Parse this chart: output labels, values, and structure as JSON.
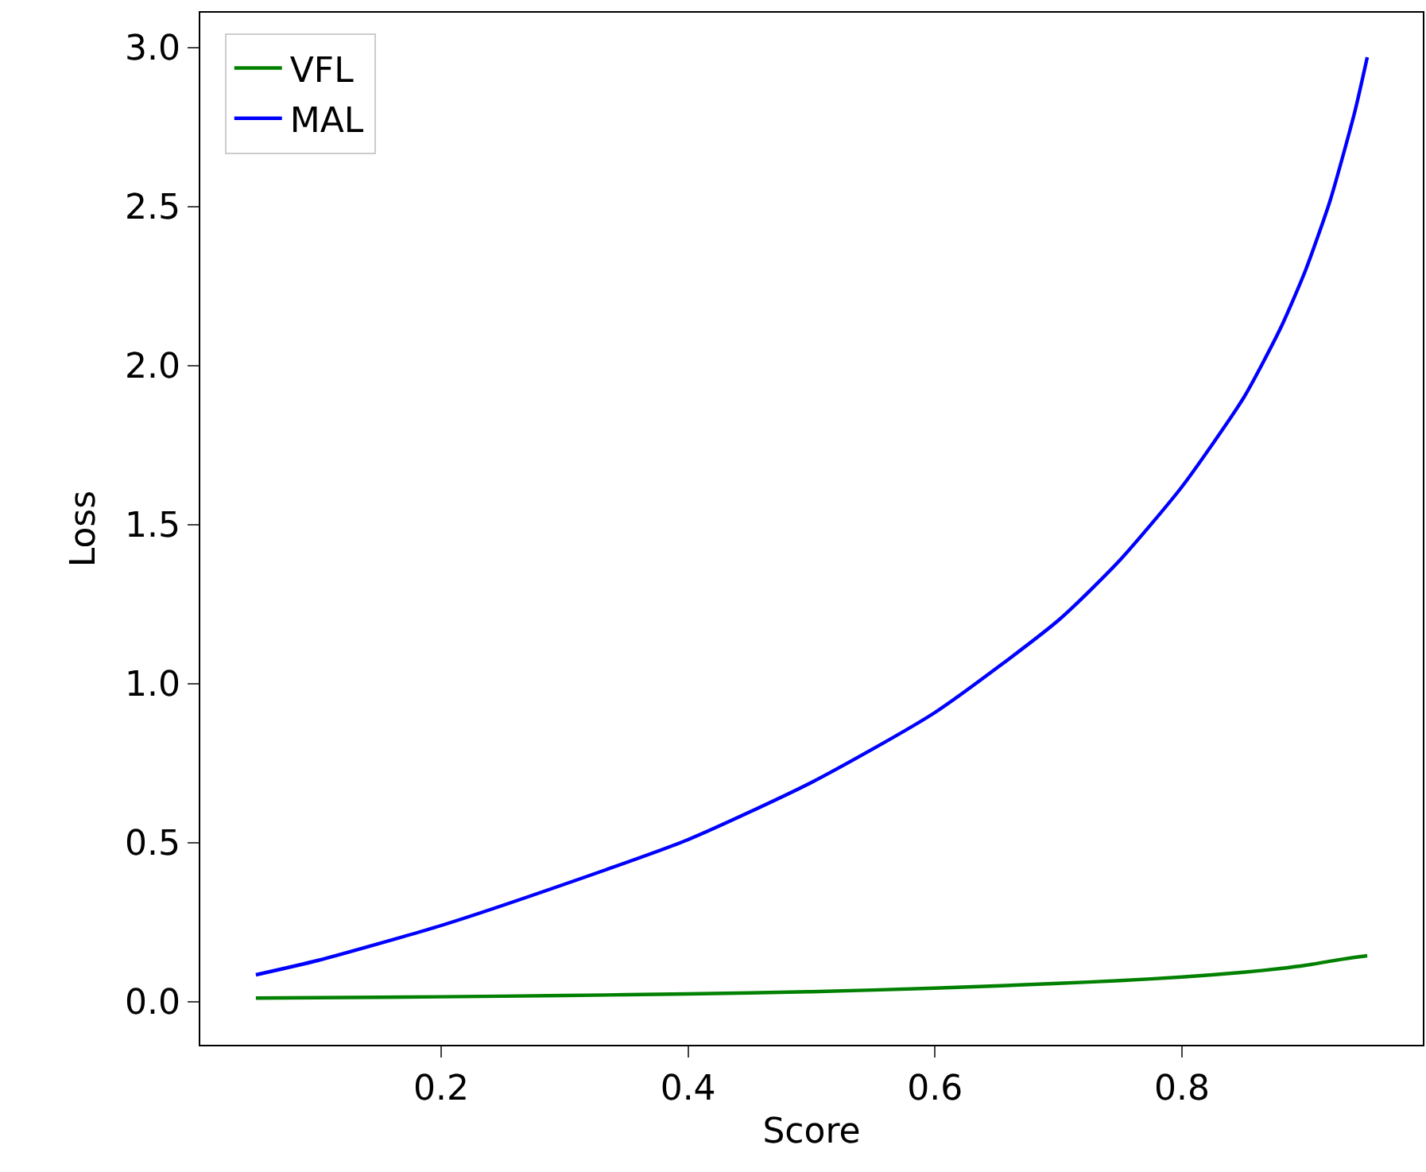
{
  "chart_data": {
    "type": "line",
    "xlabel": "Score",
    "ylabel": "Loss",
    "x": [
      0.05,
      0.1,
      0.2,
      0.3,
      0.4,
      0.5,
      0.6,
      0.7,
      0.75,
      0.8,
      0.85,
      0.88,
      0.9,
      0.92,
      0.94,
      0.95
    ],
    "series": [
      {
        "name": "VFL",
        "color": "#008000",
        "values": [
          0.012,
          0.013,
          0.016,
          0.02,
          0.025,
          0.032,
          0.043,
          0.058,
          0.067,
          0.078,
          0.093,
          0.105,
          0.115,
          0.128,
          0.14,
          0.145
        ]
      },
      {
        "name": "MAL",
        "color": "#0000ff",
        "values": [
          0.085,
          0.13,
          0.24,
          0.37,
          0.51,
          0.69,
          0.91,
          1.2,
          1.39,
          1.62,
          1.9,
          2.12,
          2.3,
          2.52,
          2.8,
          2.97
        ]
      }
    ],
    "xlim": [
      0.005,
      0.995
    ],
    "xticks": [
      0.2,
      0.4,
      0.6,
      0.8
    ],
    "ylim": [
      -0.135,
      3.11
    ],
    "yticks": [
      {
        "value": 0,
        "label": "0.0"
      },
      0.5,
      {
        "value": 1,
        "label": "1.0"
      },
      1.5,
      {
        "value": 2,
        "label": "2.0"
      },
      2.5,
      {
        "value": 3,
        "label": "3.0"
      }
    ],
    "grid": false,
    "legend": "top left",
    "line_style": "solid",
    "marker": "none"
  }
}
